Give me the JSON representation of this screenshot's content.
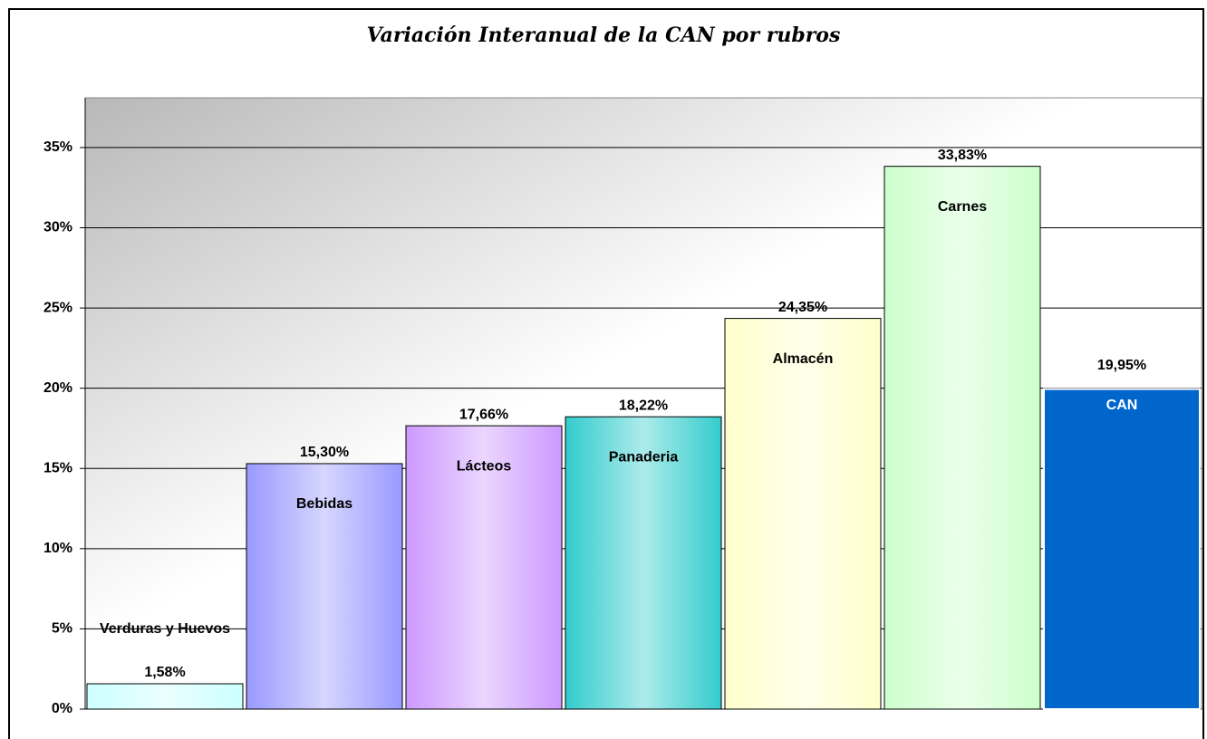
{
  "chart_data": {
    "type": "bar",
    "title": "Variación Interanual de la CAN por rubros",
    "categories": [
      "Verduras y Huevos",
      "Bebidas",
      "Lácteos",
      "Panaderia",
      "Almacén",
      "Carnes",
      "CAN"
    ],
    "values": [
      1.58,
      15.3,
      17.66,
      18.22,
      24.35,
      33.83,
      19.95
    ],
    "value_labels": [
      "1,58%",
      "15,30%",
      "17,66%",
      "18,22%",
      "24,35%",
      "33,83%",
      "19,95%"
    ],
    "colors": [
      "#ccffff",
      "#9999ff",
      "#cc99ff",
      "#33cccc",
      "#ffffcc",
      "#ccffcc",
      "#0066cc"
    ],
    "ylim": [
      0,
      38.1
    ],
    "yticks": [
      {
        "value": 0,
        "label": "0%"
      },
      {
        "value": 5,
        "label": "5%"
      },
      {
        "value": 10,
        "label": "10%"
      },
      {
        "value": 15,
        "label": "15%"
      },
      {
        "value": 20,
        "label": "20%"
      },
      {
        "value": 25,
        "label": "25%"
      },
      {
        "value": 30,
        "label": "30%"
      },
      {
        "value": 35,
        "label": "35%"
      }
    ],
    "grid": true
  }
}
